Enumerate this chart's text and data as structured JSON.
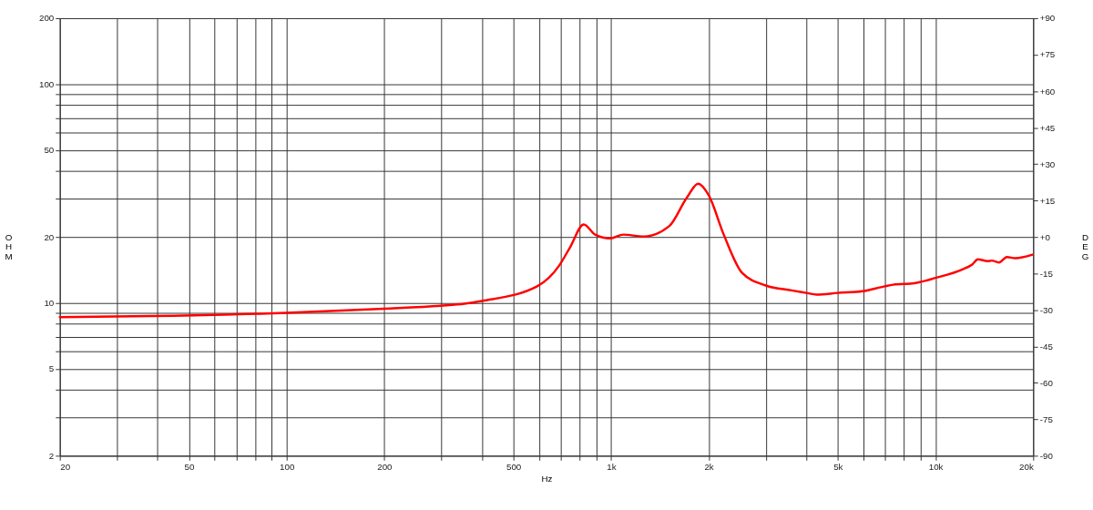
{
  "chart_data": {
    "type": "line",
    "xlabel": "Hz",
    "ylabel": "OHM",
    "y2label": "DEG",
    "log": "xy",
    "grid": true,
    "legend": false,
    "marker": "none",
    "line_style": "solid",
    "xlim": [
      20,
      20000
    ],
    "ylim": [
      2,
      200
    ],
    "y2lim": [
      -90,
      90
    ],
    "xticks": [
      20,
      {
        "value": 30,
        "label": null
      },
      {
        "value": 40,
        "label": null
      },
      50,
      {
        "value": 60,
        "label": null
      },
      {
        "value": 70,
        "label": null
      },
      {
        "value": 80,
        "label": null
      },
      {
        "value": 90,
        "label": null
      },
      100,
      200,
      {
        "value": 300,
        "label": null
      },
      {
        "value": 400,
        "label": null
      },
      500,
      {
        "value": 600,
        "label": null
      },
      {
        "value": 700,
        "label": null
      },
      {
        "value": 800,
        "label": null
      },
      {
        "value": 900,
        "label": null
      },
      {
        "value": 1000,
        "label": "1k"
      },
      {
        "value": 2000,
        "label": "2k"
      },
      {
        "value": 3000,
        "label": null
      },
      {
        "value": 4000,
        "label": null
      },
      {
        "value": 5000,
        "label": "5k"
      },
      {
        "value": 6000,
        "label": null
      },
      {
        "value": 7000,
        "label": null
      },
      {
        "value": 8000,
        "label": null
      },
      {
        "value": 9000,
        "label": null
      },
      {
        "value": 10000,
        "label": "10k"
      },
      {
        "value": 20000,
        "label": "20k"
      }
    ],
    "yticks": [
      2,
      {
        "value": 3,
        "label": null
      },
      {
        "value": 4,
        "label": null
      },
      5,
      {
        "value": 6,
        "label": null
      },
      {
        "value": 7,
        "label": null
      },
      {
        "value": 8,
        "label": null
      },
      {
        "value": 9,
        "label": null
      },
      10,
      20,
      {
        "value": 30,
        "label": null
      },
      {
        "value": 40,
        "label": null
      },
      50,
      {
        "value": 60,
        "label": null
      },
      {
        "value": 70,
        "label": null
      },
      {
        "value": 80,
        "label": null
      },
      {
        "value": 90,
        "label": null
      },
      100,
      200
    ],
    "y2ticks": [
      {
        "value": -90,
        "label": "-90"
      },
      {
        "value": -75,
        "label": "-75"
      },
      {
        "value": -60,
        "label": "-60"
      },
      {
        "value": -45,
        "label": "-45"
      },
      {
        "value": -30,
        "label": "-30"
      },
      {
        "value": -15,
        "label": "-15"
      },
      {
        "value": 0,
        "label": "+0"
      },
      {
        "value": 15,
        "label": "+15"
      },
      {
        "value": 30,
        "label": "+30"
      },
      {
        "value": 45,
        "label": "+45"
      },
      {
        "value": 60,
        "label": "+60"
      },
      {
        "value": 75,
        "label": "+75"
      },
      {
        "value": 90,
        "label": "+90"
      }
    ],
    "series": [
      {
        "color": "#ff0000",
        "x": [
          20,
          38,
          100,
          200,
          298,
          353,
          400,
          592,
          692,
          747,
          824,
          893,
          994,
          1090,
          1260,
          1510,
          1711,
          1855,
          2000,
          2225,
          2535,
          3000,
          3600,
          4000,
          4300,
          5000,
          5960,
          6970,
          7400,
          8600,
          10000,
          12100,
          13000,
          13500,
          14500,
          14900,
          15700,
          16600,
          17600,
          19900
        ],
        "values": [
          8.6,
          8.7,
          9.0,
          9.4,
          9.7,
          9.9,
          10.2,
          11.9,
          14.8,
          17.9,
          22.8,
          20.5,
          19.7,
          20.5,
          20.1,
          22.4,
          30.2,
          35,
          31,
          20.5,
          13.7,
          12.0,
          11.4,
          11.1,
          10.9,
          11.1,
          11.3,
          11.9,
          12.1,
          12.3,
          13.0,
          14.2,
          15.0,
          15.8,
          15.5,
          15.6,
          15.3,
          16.2,
          16.0,
          16.6
        ]
      }
    ]
  }
}
